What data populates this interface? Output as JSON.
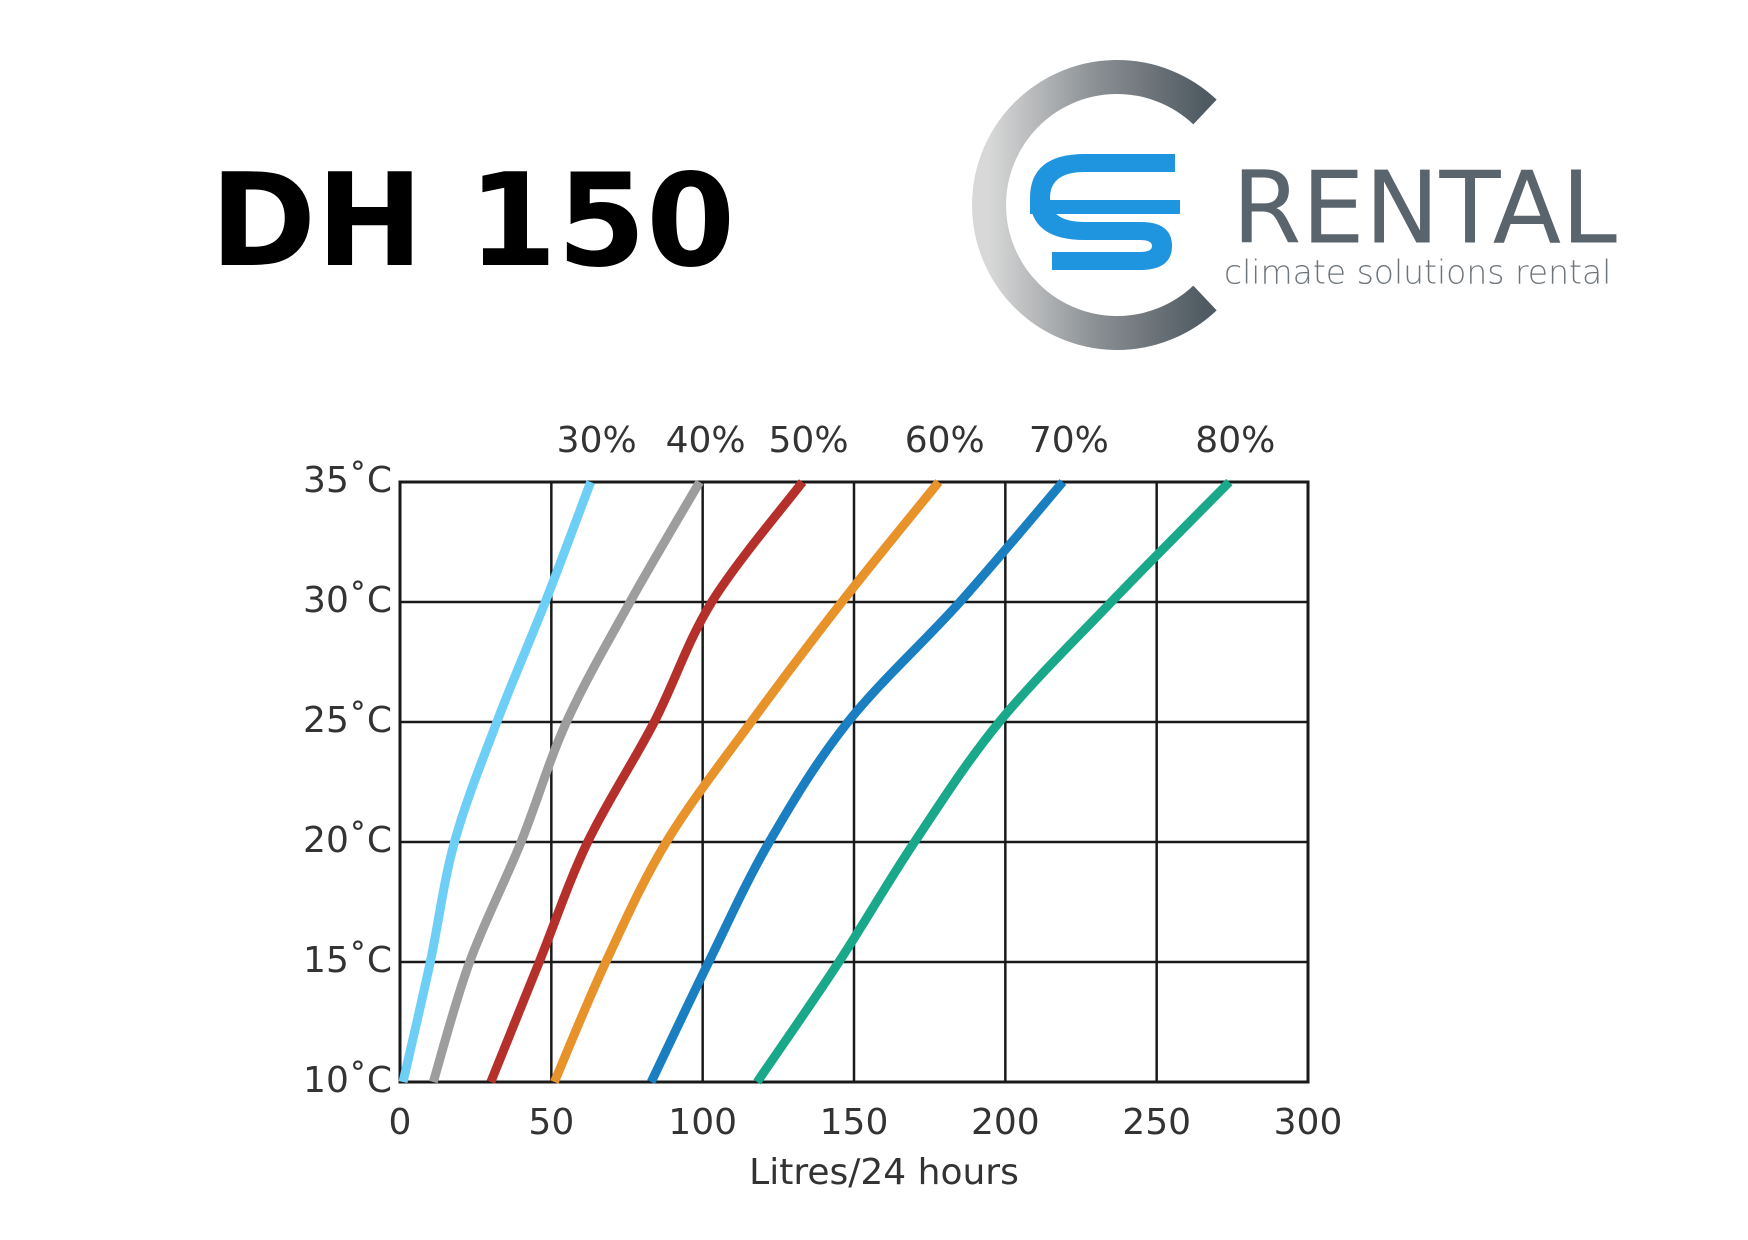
{
  "header": {
    "title": "DH 150"
  },
  "logo": {
    "name": "RENTAL",
    "tagline": "climate solutions rental"
  },
  "chart_data": {
    "type": "line",
    "x_label": "Litres/24 hours",
    "xlim": [
      0,
      300
    ],
    "xticks": [
      0,
      50,
      100,
      150,
      200,
      250,
      300
    ],
    "ylim": [
      10,
      35
    ],
    "yticks": [
      {
        "value": 10,
        "label": "10˚C"
      },
      {
        "value": 15,
        "label": "15˚C"
      },
      {
        "value": 20,
        "label": "20˚C"
      },
      {
        "value": 25,
        "label": "25˚C"
      },
      {
        "value": 30,
        "label": "30˚C"
      },
      {
        "value": 35,
        "label": "35˚C"
      }
    ],
    "grid": true,
    "series": [
      {
        "name": "30%",
        "color": "#6ecff6",
        "x": [
          1,
          10,
          18,
          32,
          48,
          63
        ],
        "values": [
          10,
          15,
          20,
          25,
          30,
          35
        ]
      },
      {
        "name": "40%",
        "color": "#9d9d9d",
        "x": [
          11,
          23,
          40,
          55,
          76,
          99
        ],
        "values": [
          10,
          15,
          20,
          25,
          30,
          35
        ]
      },
      {
        "name": "50%",
        "color": "#b5302a",
        "x": [
          30,
          46,
          62,
          84,
          103,
          133
        ],
        "values": [
          10,
          15,
          20,
          25,
          30,
          35
        ]
      },
      {
        "name": "60%",
        "color": "#e8922a",
        "x": [
          51,
          68,
          88,
          116,
          146,
          178
        ],
        "values": [
          10,
          15,
          20,
          25,
          30,
          35
        ]
      },
      {
        "name": "70%",
        "color": "#1a7fc1",
        "x": [
          83,
          102,
          122,
          148,
          185,
          219
        ],
        "values": [
          10,
          15,
          20,
          25,
          30,
          35
        ]
      },
      {
        "name": "80%",
        "color": "#1aa88a",
        "x": [
          118,
          145,
          170,
          198,
          235,
          274
        ],
        "values": [
          10,
          15,
          20,
          25,
          30,
          35
        ]
      }
    ]
  }
}
